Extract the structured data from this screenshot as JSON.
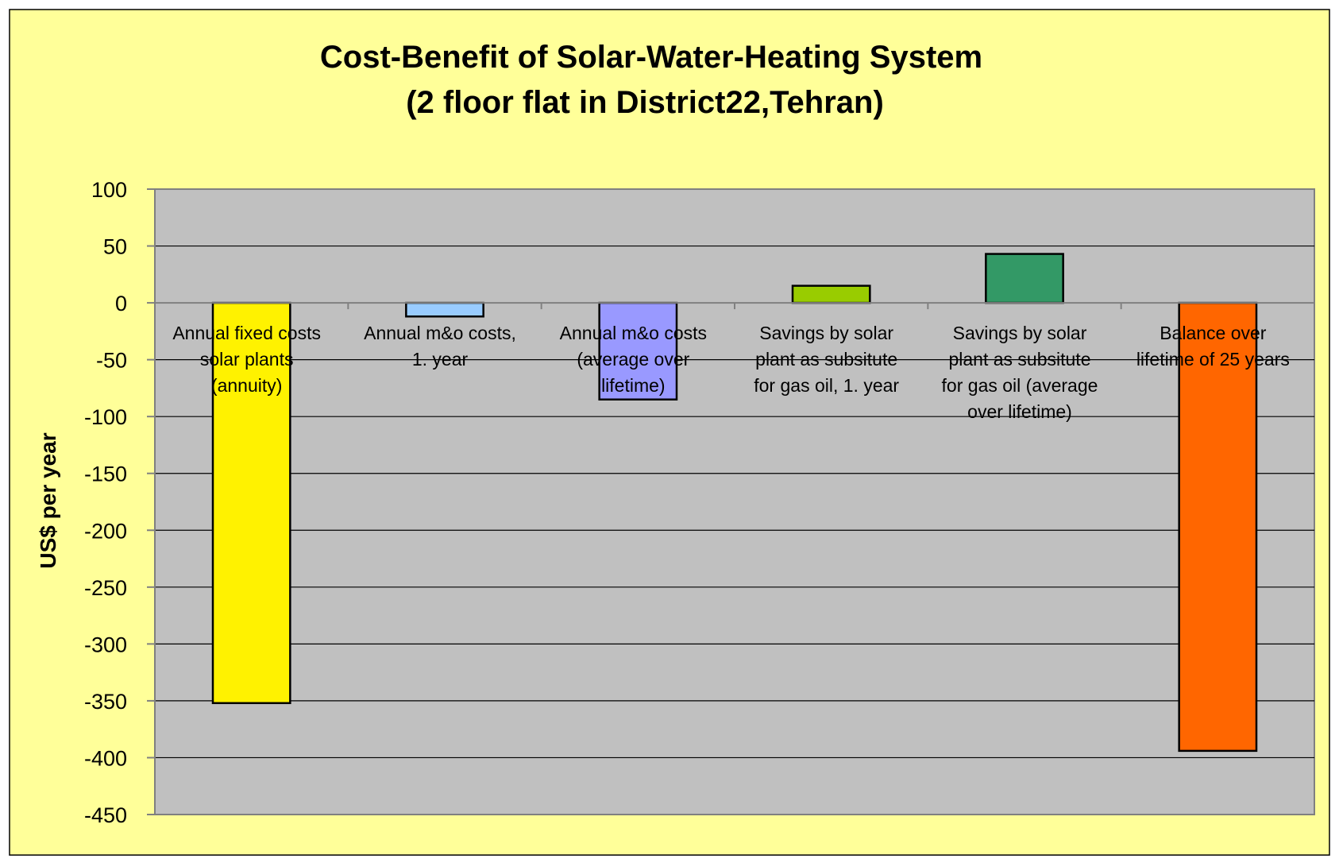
{
  "chart_data": {
    "type": "bar",
    "title": [
      "Cost-Benefit of Solar-Water-Heating System",
      "(2 floor flat in District22,Tehran)"
    ],
    "ylabel": "US$ per year",
    "xlabel": "",
    "ylim": [
      -450,
      100
    ],
    "yticks": [
      100,
      50,
      0,
      -50,
      -100,
      -150,
      -200,
      -250,
      -300,
      -350,
      -400,
      -450
    ],
    "grid": true,
    "categories": [
      [
        "Annual fixed costs",
        "solar plants",
        "(annuity)"
      ],
      [
        "Annual m&o costs,",
        "1. year"
      ],
      [
        "Annual m&o costs",
        "(average over",
        "lifetime)"
      ],
      [
        "Savings by solar",
        "plant as subsitute",
        "for gas oil, 1. year"
      ],
      [
        "Savings by solar",
        "plant as subsitute",
        "for gas oil (average",
        "over lifetime)"
      ],
      [
        "Balance over",
        "lifetime of 25 years"
      ]
    ],
    "values": [
      -352,
      -12,
      -85,
      15,
      43,
      -394
    ],
    "colors": [
      "#FFF200",
      "#99CCFF",
      "#9999FF",
      "#99CC00",
      "#339966",
      "#FF6600"
    ]
  },
  "colors": {
    "background": "#FFFF99",
    "plot_area": "#C0C0C0",
    "frame": "#000000"
  }
}
